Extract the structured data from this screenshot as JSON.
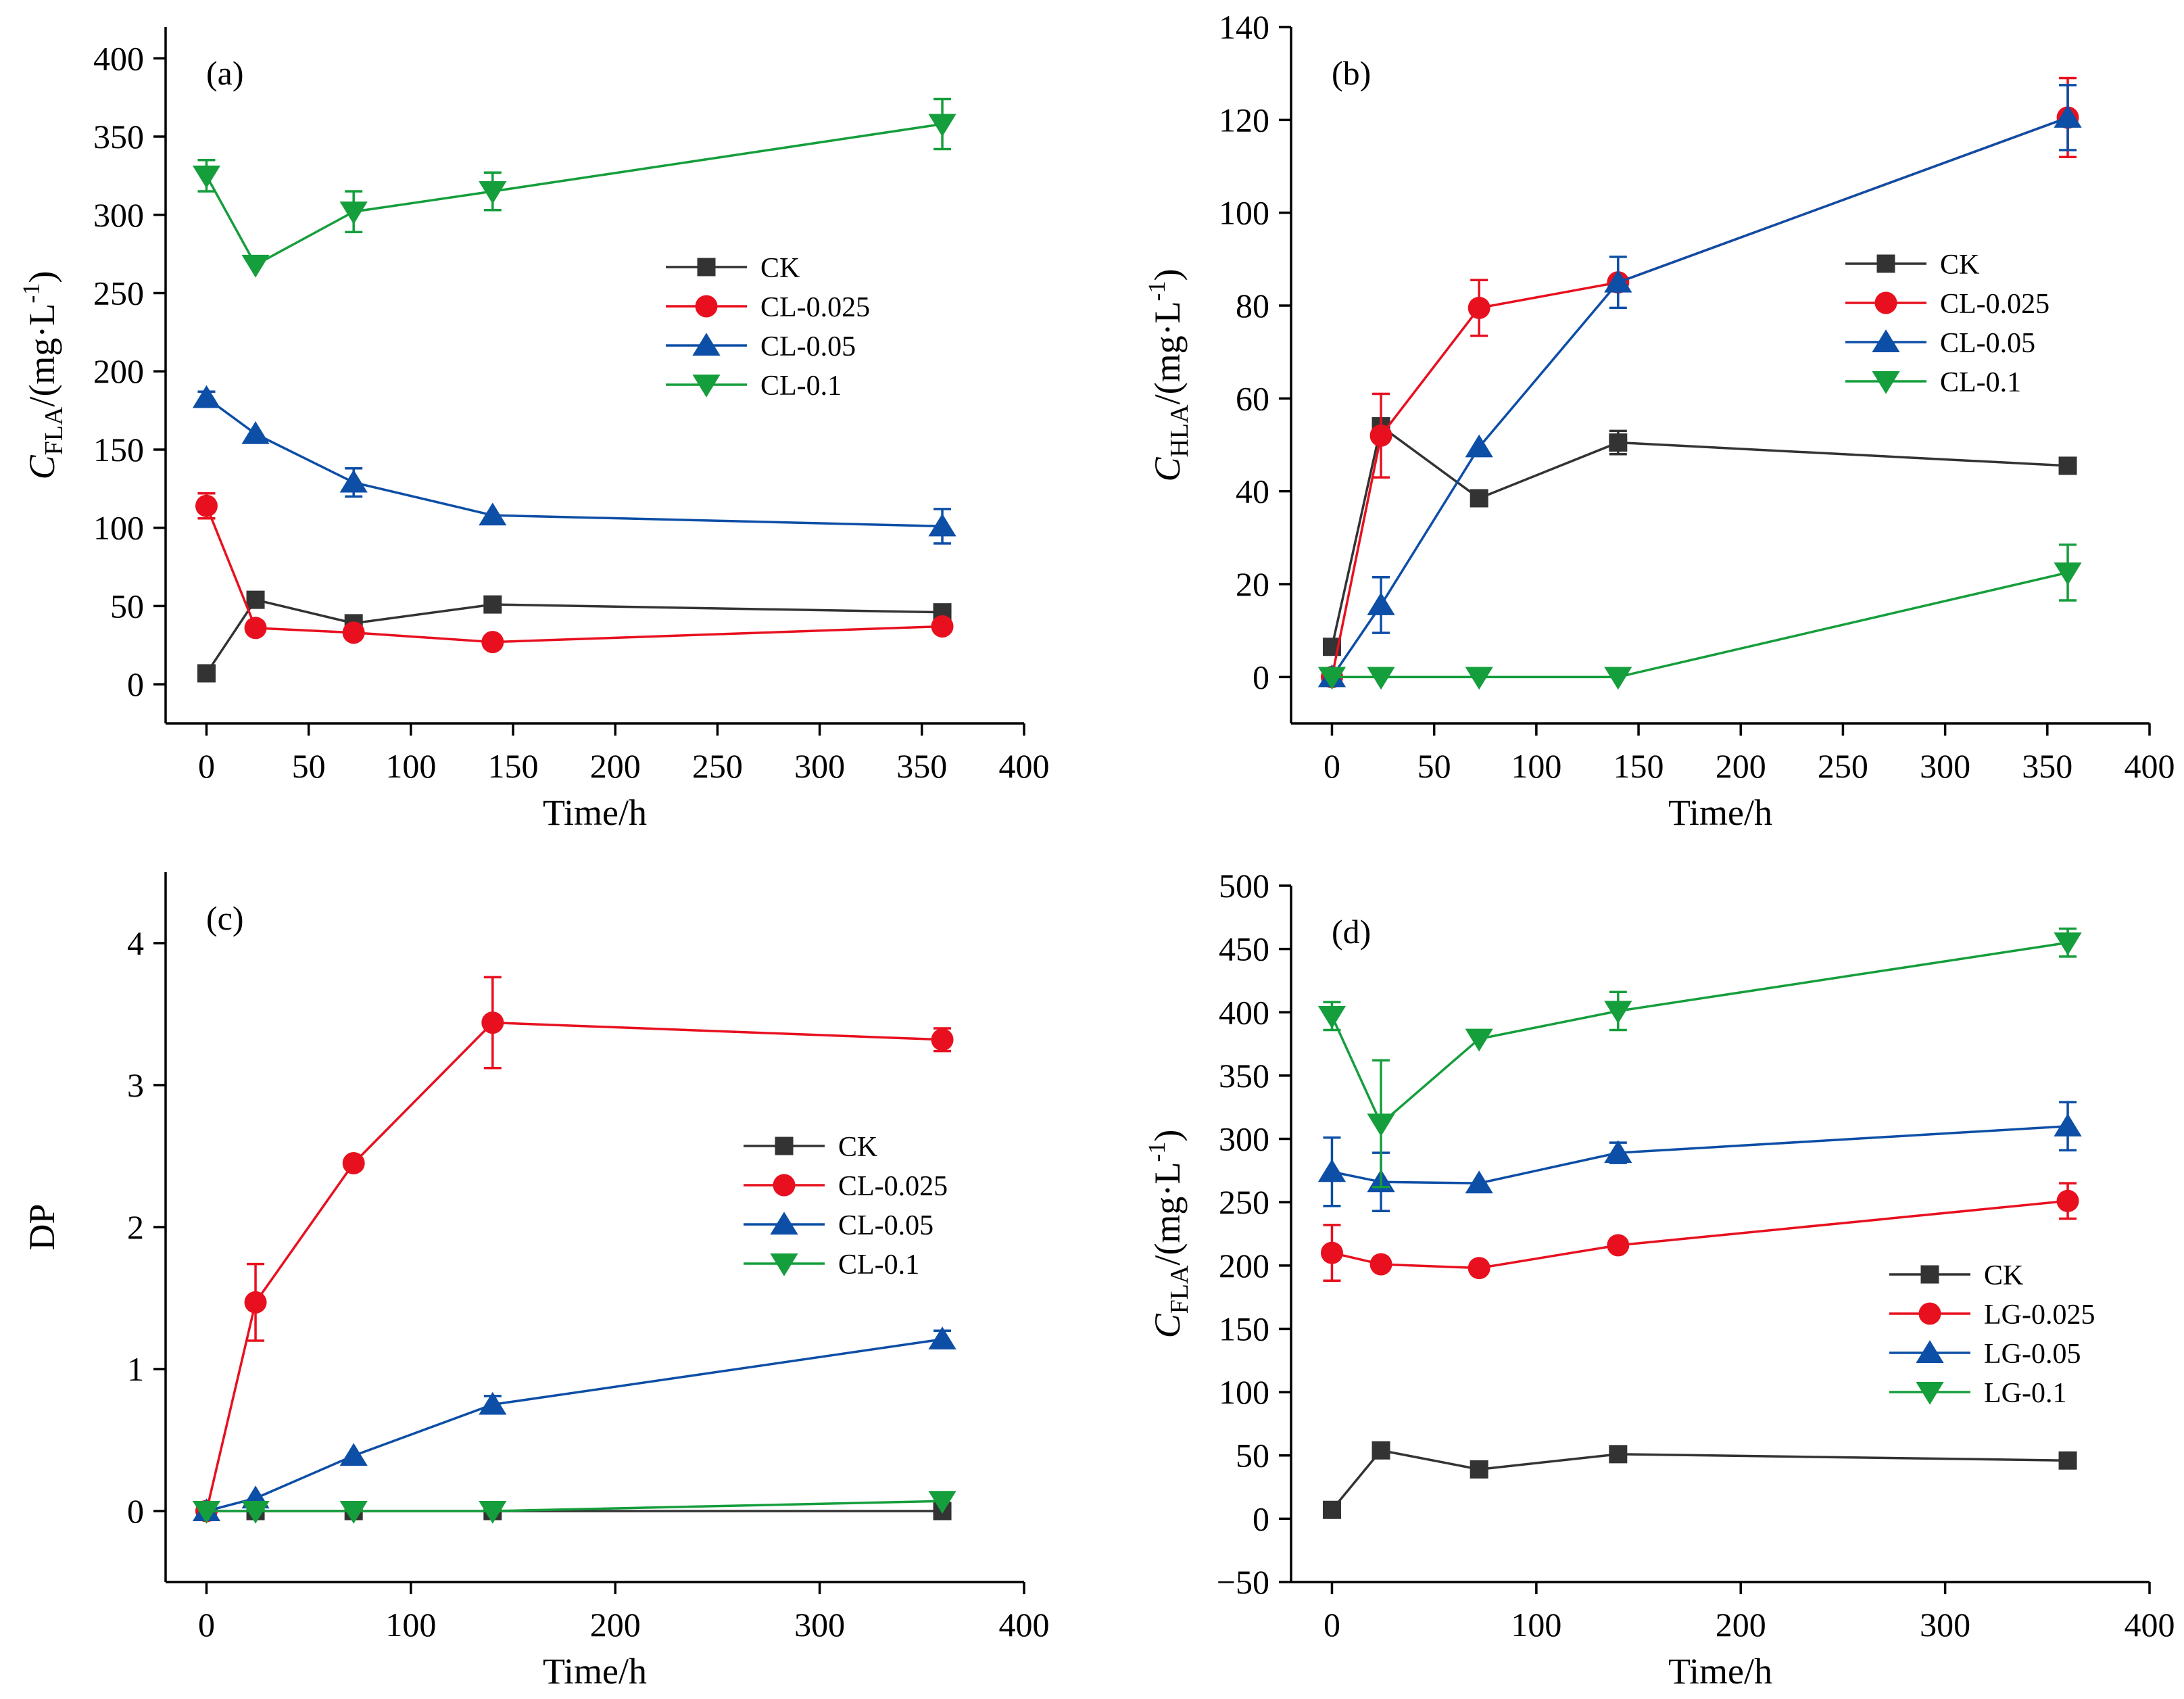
{
  "chart_data": [
    {
      "type": "line",
      "panel_label": "(a)",
      "xlabel": "Time/h",
      "ylabel": {
        "main": "C",
        "sub": "FLA",
        "rest": "/(mg·L",
        "sup": "-1",
        "close": ")"
      },
      "xlim": [
        -20,
        400
      ],
      "ylim": [
        -25,
        420
      ],
      "xticks": [
        0,
        50,
        100,
        150,
        200,
        250,
        300,
        350,
        400
      ],
      "yticks": [
        0,
        50,
        100,
        150,
        200,
        250,
        300,
        350,
        400
      ],
      "ytick_labels": [
        "0",
        "50",
        "100",
        "150",
        "200",
        "250",
        "300",
        "350",
        "400"
      ],
      "legend_position": "center-right",
      "x": [
        0,
        24,
        72,
        140,
        360
      ],
      "series": [
        {
          "name": "CK",
          "color": "#333333",
          "marker": "square",
          "values": [
            7,
            54,
            39,
            51,
            46
          ],
          "errors": [
            0,
            0,
            0,
            0,
            0
          ]
        },
        {
          "name": "CL-0.025",
          "color": "#e8101f",
          "marker": "circle",
          "values": [
            114,
            36,
            33,
            27,
            37
          ],
          "errors": [
            8,
            0,
            0,
            0,
            0
          ]
        },
        {
          "name": "CL-0.05",
          "color": "#0d4ea6",
          "marker": "triangle-up",
          "values": [
            183,
            160,
            129,
            108,
            101
          ],
          "errors": [
            4,
            0,
            9,
            0,
            11
          ]
        },
        {
          "name": "CL-0.1",
          "color": "#159e3c",
          "marker": "triangle-down",
          "values": [
            325,
            268,
            302,
            315,
            358
          ],
          "errors": [
            10,
            0,
            13,
            12,
            16
          ]
        }
      ]
    },
    {
      "type": "line",
      "panel_label": "(b)",
      "xlabel": "Time/h",
      "ylabel": {
        "main": "C",
        "sub": "HLA",
        "rest": "/(mg·L",
        "sup": "-1",
        "close": ")"
      },
      "xlim": [
        -20,
        400
      ],
      "ylim": [
        -10,
        140
      ],
      "xticks": [
        0,
        50,
        100,
        150,
        200,
        250,
        300,
        350,
        400
      ],
      "yticks": [
        0,
        20,
        40,
        60,
        80,
        100,
        120,
        140
      ],
      "ytick_labels": [
        "0",
        "20",
        "40",
        "60",
        "80",
        "100",
        "120",
        "140"
      ],
      "legend_position": "center-right",
      "x": [
        0,
        24,
        72,
        140,
        360
      ],
      "series": [
        {
          "name": "CK",
          "color": "#333333",
          "marker": "square",
          "values": [
            6.5,
            54,
            38.5,
            50.5,
            45.5
          ],
          "errors": [
            0,
            0,
            0,
            2.5,
            0
          ]
        },
        {
          "name": "CL-0.025",
          "color": "#e8101f",
          "marker": "circle",
          "values": [
            0,
            52,
            79.5,
            85,
            120.5
          ],
          "errors": [
            0,
            9,
            6,
            0,
            8.5
          ]
        },
        {
          "name": "CL-0.05",
          "color": "#0d4ea6",
          "marker": "triangle-up",
          "values": [
            0,
            15.5,
            49.5,
            85,
            120.5
          ],
          "errors": [
            0,
            6,
            0,
            5.5,
            7
          ]
        },
        {
          "name": "CL-0.1",
          "color": "#159e3c",
          "marker": "triangle-down",
          "values": [
            0,
            0,
            0,
            0,
            22.5
          ],
          "errors": [
            0,
            0,
            0,
            0,
            6
          ]
        }
      ]
    },
    {
      "type": "line",
      "panel_label": "(c)",
      "xlabel": "Time/h",
      "ylabel": {
        "main": "DP",
        "sub": "",
        "rest": "",
        "sup": "",
        "close": ""
      },
      "xlim": [
        -20,
        400
      ],
      "ylim": [
        -0.5,
        4.5
      ],
      "xticks": [
        0,
        100,
        200,
        300,
        400
      ],
      "yticks": [
        0,
        1,
        2,
        3,
        4
      ],
      "ytick_labels": [
        "0",
        "1",
        "2",
        "3",
        "4"
      ],
      "legend_position": "center-right",
      "x": [
        0,
        24,
        72,
        140,
        360
      ],
      "series": [
        {
          "name": "CK",
          "color": "#333333",
          "marker": "square",
          "values": [
            0,
            0,
            0,
            0,
            0
          ],
          "errors": [
            0,
            0,
            0,
            0,
            0
          ]
        },
        {
          "name": "CL-0.025",
          "color": "#e8101f",
          "marker": "circle",
          "values": [
            0,
            1.47,
            2.45,
            3.44,
            3.32
          ],
          "errors": [
            0,
            0.27,
            0,
            0.32,
            0.08
          ]
        },
        {
          "name": "CL-0.05",
          "color": "#0d4ea6",
          "marker": "triangle-up",
          "values": [
            0,
            0.09,
            0.39,
            0.75,
            1.21
          ],
          "errors": [
            0,
            0,
            0,
            0.06,
            0.06
          ]
        },
        {
          "name": "CL-0.1",
          "color": "#159e3c",
          "marker": "triangle-down",
          "values": [
            0,
            0,
            0,
            0,
            0.07
          ],
          "errors": [
            0,
            0,
            0,
            0,
            0
          ]
        }
      ]
    },
    {
      "type": "line",
      "panel_label": "(d)",
      "xlabel": "Time/h",
      "ylabel": {
        "main": "C",
        "sub": "FLA",
        "rest": "/(mg·L",
        "sup": "-1",
        "close": ")"
      },
      "xlim": [
        -20,
        400
      ],
      "ylim": [
        -50,
        500
      ],
      "xticks": [
        0,
        100,
        200,
        300,
        400
      ],
      "yticks": [
        -50,
        0,
        50,
        100,
        150,
        200,
        250,
        300,
        350,
        400,
        450,
        500
      ],
      "ytick_labels": [
        "−50",
        "0",
        "50",
        "100",
        "150",
        "200",
        "250",
        "300",
        "350",
        "400",
        "450",
        "500"
      ],
      "legend_position": "lower-right",
      "x": [
        0,
        24,
        72,
        140,
        360
      ],
      "series": [
        {
          "name": "CK",
          "color": "#333333",
          "marker": "square",
          "values": [
            7,
            54,
            39,
            51,
            46
          ],
          "errors": [
            0,
            0,
            0,
            0,
            0
          ]
        },
        {
          "name": "LG-0.025",
          "color": "#e8101f",
          "marker": "circle",
          "values": [
            210,
            201,
            198,
            216,
            251
          ],
          "errors": [
            22,
            0,
            0,
            0,
            14
          ]
        },
        {
          "name": "LG-0.05",
          "color": "#0d4ea6",
          "marker": "triangle-up",
          "values": [
            274,
            266,
            265,
            289,
            310
          ],
          "errors": [
            27,
            23,
            0,
            8,
            19
          ]
        },
        {
          "name": "LG-0.1",
          "color": "#159e3c",
          "marker": "triangle-down",
          "values": [
            397,
            312,
            379,
            401,
            455
          ],
          "errors": [
            11,
            50,
            0,
            15,
            11
          ]
        }
      ]
    }
  ]
}
